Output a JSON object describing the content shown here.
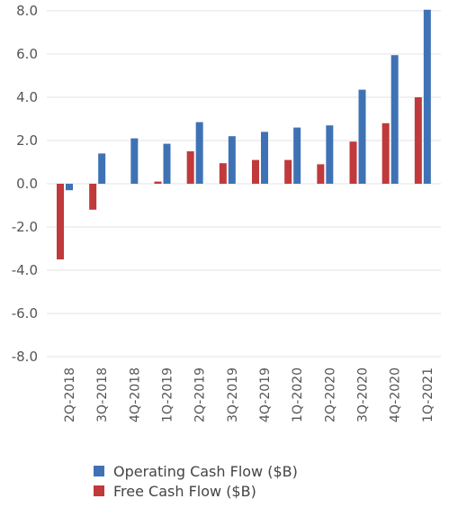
{
  "chart_data": {
    "type": "bar",
    "categories": [
      "2Q-2018",
      "3Q-2018",
      "4Q-2018",
      "1Q-2019",
      "2Q-2019",
      "3Q-2019",
      "4Q-2019",
      "1Q-2020",
      "2Q-2020",
      "3Q-2020",
      "4Q-2020",
      "1Q-2021"
    ],
    "series": [
      {
        "name": "Operating Cash Flow ($B)",
        "color": "#3f72b5",
        "values": [
          -0.3,
          1.4,
          2.1,
          1.85,
          2.85,
          2.2,
          2.4,
          2.6,
          2.7,
          4.35,
          5.95,
          8.05
        ]
      },
      {
        "name": "Free Cash Flow ($B)",
        "color": "#c0393b",
        "values": [
          -3.5,
          -1.2,
          0.0,
          0.1,
          1.5,
          0.95,
          1.1,
          1.1,
          0.9,
          1.95,
          2.8,
          4.0
        ]
      }
    ],
    "ylim": [
      -8,
      8
    ],
    "yticks": [
      "8.0",
      "6.0",
      "4.0",
      "2.0",
      "0.0",
      "-2.0",
      "-4.0",
      "-6.0",
      "-8.0"
    ],
    "ytick_values": [
      8,
      6,
      4,
      2,
      0,
      -2,
      -4,
      -6,
      -8
    ],
    "grid": true,
    "legend_position": "bottom"
  }
}
